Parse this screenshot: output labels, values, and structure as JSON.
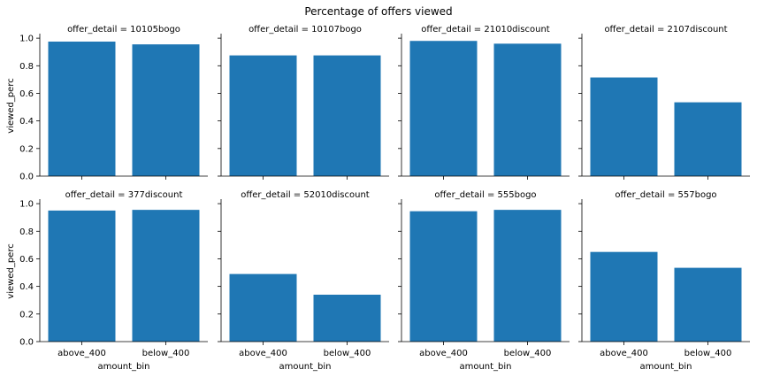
{
  "chart_data": {
    "type": "bar",
    "title": "Percentage of offers viewed",
    "xlabel": "amount_bin",
    "ylabel": "viewed_perc",
    "categories": [
      "above_400",
      "below_400"
    ],
    "ylim": [
      0,
      1.02
    ],
    "yticks": [
      "0.0",
      "0.2",
      "0.4",
      "0.6",
      "0.8",
      "1.0"
    ],
    "yticks_values": [
      0,
      0.2,
      0.4,
      0.6,
      0.8,
      1.0
    ],
    "grid": false,
    "bar_color": "#1f77b4",
    "panels": [
      {
        "title": "offer_detail = 10105bogo",
        "values": [
          0.975,
          0.955
        ]
      },
      {
        "title": "offer_detail = 10107bogo",
        "values": [
          0.875,
          0.875
        ]
      },
      {
        "title": "offer_detail = 21010discount",
        "values": [
          0.98,
          0.96
        ]
      },
      {
        "title": "offer_detail = 2107discount",
        "values": [
          0.715,
          0.535
        ]
      },
      {
        "title": "offer_detail = 377discount",
        "values": [
          0.95,
          0.955
        ]
      },
      {
        "title": "offer_detail = 52010discount",
        "values": [
          0.49,
          0.34
        ]
      },
      {
        "title": "offer_detail = 555bogo",
        "values": [
          0.945,
          0.955
        ]
      },
      {
        "title": "offer_detail = 557bogo",
        "values": [
          0.65,
          0.535
        ]
      }
    ]
  }
}
